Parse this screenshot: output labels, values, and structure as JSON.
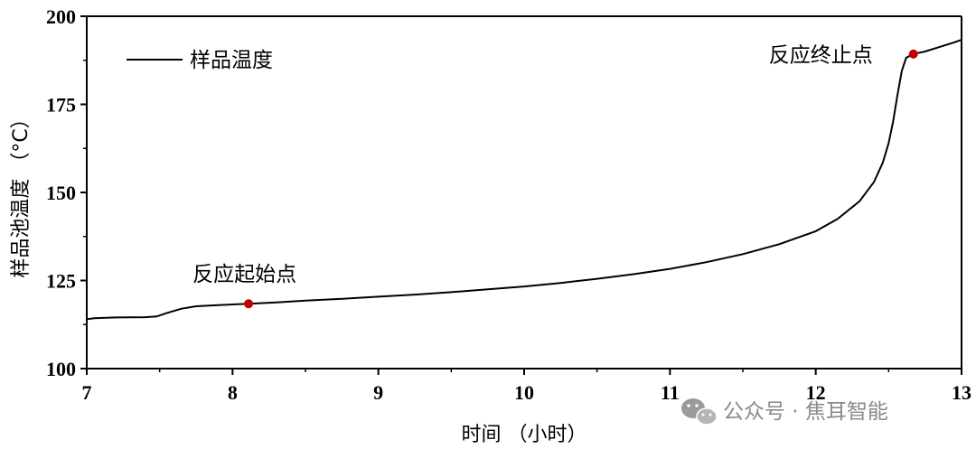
{
  "chart_data": {
    "type": "line",
    "ylabel": "样品池温度 （°C）",
    "xlabel": "时间 （小时）",
    "xlim": [
      7,
      13
    ],
    "ylim": [
      100,
      200
    ],
    "xticks": [
      7,
      8,
      9,
      10,
      11,
      12,
      13
    ],
    "yticks": [
      100,
      125,
      150,
      175,
      200
    ],
    "xtick_labels": [
      "7",
      "8",
      "9",
      "10",
      "11",
      "12",
      "13"
    ],
    "ytick_labels": [
      "100",
      "125",
      "150",
      "175",
      "200"
    ],
    "legend_position": "top-left",
    "grid": false,
    "series": [
      {
        "name": "样品温度",
        "color": "#000000",
        "points": [
          [
            7.0,
            114.0
          ],
          [
            7.05,
            114.3
          ],
          [
            7.2,
            114.5
          ],
          [
            7.4,
            114.6
          ],
          [
            7.48,
            114.8
          ],
          [
            7.55,
            115.8
          ],
          [
            7.65,
            117.0
          ],
          [
            7.75,
            117.7
          ],
          [
            7.9,
            118.0
          ],
          [
            8.0,
            118.2
          ],
          [
            8.11,
            118.4
          ],
          [
            8.3,
            118.8
          ],
          [
            8.5,
            119.3
          ],
          [
            8.75,
            119.8
          ],
          [
            9.0,
            120.4
          ],
          [
            9.25,
            121.0
          ],
          [
            9.5,
            121.7
          ],
          [
            9.75,
            122.5
          ],
          [
            10.0,
            123.3
          ],
          [
            10.25,
            124.3
          ],
          [
            10.5,
            125.5
          ],
          [
            10.75,
            126.8
          ],
          [
            11.0,
            128.3
          ],
          [
            11.25,
            130.2
          ],
          [
            11.5,
            132.5
          ],
          [
            11.75,
            135.3
          ],
          [
            12.0,
            139.0
          ],
          [
            12.15,
            142.5
          ],
          [
            12.3,
            147.5
          ],
          [
            12.4,
            153.0
          ],
          [
            12.46,
            158.5
          ],
          [
            12.5,
            164.0
          ],
          [
            12.53,
            170.0
          ],
          [
            12.56,
            177.5
          ],
          [
            12.59,
            184.5
          ],
          [
            12.62,
            188.2
          ],
          [
            12.67,
            189.3
          ],
          [
            12.75,
            190.0
          ],
          [
            12.85,
            191.3
          ],
          [
            12.95,
            192.6
          ],
          [
            13.0,
            193.3
          ]
        ]
      }
    ],
    "annotations": [
      {
        "text": "反应起始点",
        "x": 8.11,
        "y": 118.4,
        "marker_color": "#c00000"
      },
      {
        "text": "反应终止点",
        "x": 12.67,
        "y": 189.3,
        "marker_color": "#c00000"
      }
    ]
  },
  "watermark": {
    "text": "公众号 · 焦耳智能",
    "icon": "wechat-icon"
  }
}
